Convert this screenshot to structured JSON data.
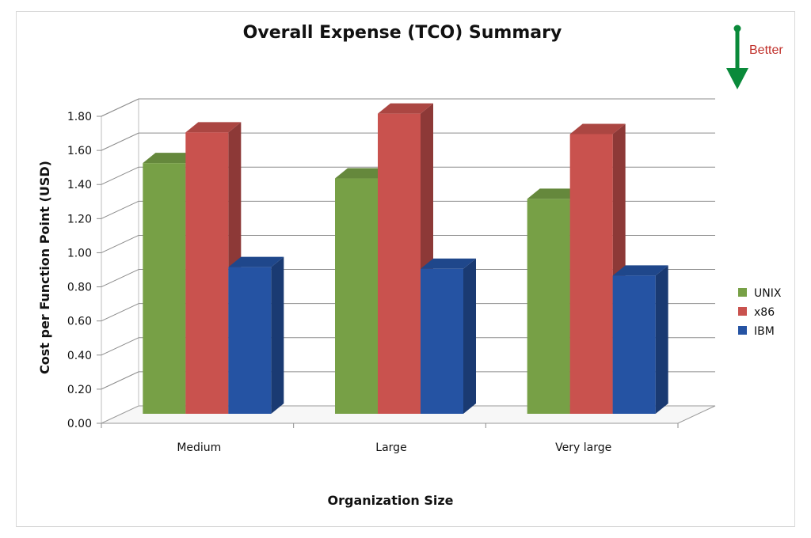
{
  "chart_data": {
    "type": "bar",
    "title": "Overall Expense (TCO) Summary",
    "xlabel": "Organization Size",
    "ylabel": "Cost per Function Point (USD)",
    "categories": [
      "Medium",
      "Large",
      "Very large"
    ],
    "series": [
      {
        "name": "UNIX",
        "values": [
          1.47,
          1.38,
          1.26
        ],
        "color": "#77a046"
      },
      {
        "name": "x86",
        "values": [
          1.65,
          1.76,
          1.64
        ],
        "color": "#c9524e"
      },
      {
        "name": "IBM",
        "values": [
          0.86,
          0.85,
          0.81
        ],
        "color": "#2553a3"
      }
    ],
    "ylim": [
      0,
      1.8
    ],
    "yticks": [
      "0.00",
      "0.20",
      "0.40",
      "0.60",
      "0.80",
      "1.00",
      "1.20",
      "1.40",
      "1.60",
      "1.80"
    ],
    "grid": true,
    "legend_position": "right",
    "chart_style": "3d-clustered-column",
    "annotation": {
      "text": "Better",
      "icon": "down-arrow-icon",
      "color": "#0a8a3a"
    }
  }
}
